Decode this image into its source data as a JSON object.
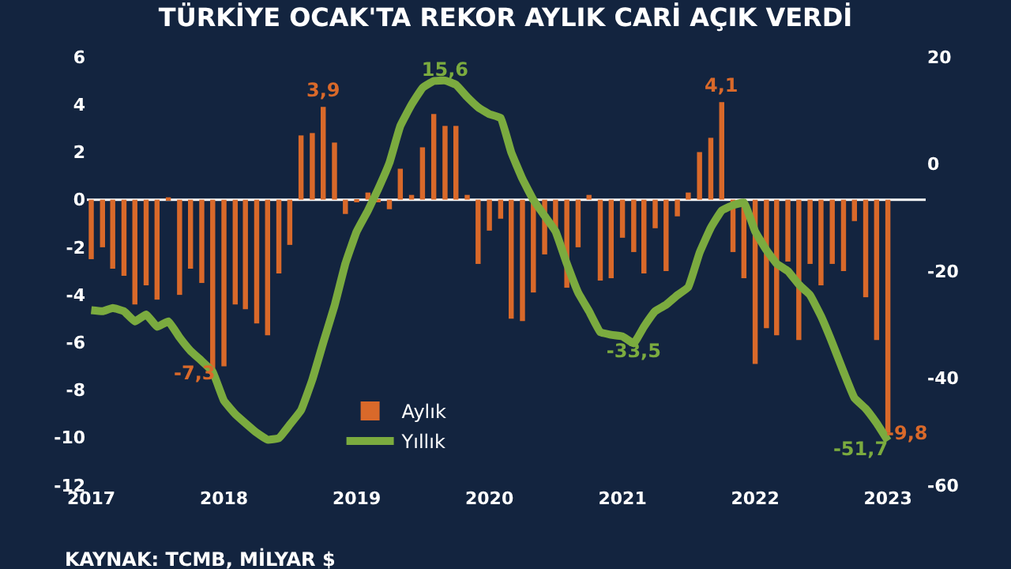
{
  "chart_data": {
    "type": "bar",
    "title": "TÜRKİYE OCAK'TA REKOR AYLIK CARİ AÇIK VERDİ",
    "x": [
      "2017-01",
      "2017-02",
      "2017-03",
      "2017-04",
      "2017-05",
      "2017-06",
      "2017-07",
      "2017-08",
      "2017-09",
      "2017-10",
      "2017-11",
      "2017-12",
      "2018-01",
      "2018-02",
      "2018-03",
      "2018-04",
      "2018-05",
      "2018-06",
      "2018-07",
      "2018-08",
      "2018-09",
      "2018-10",
      "2018-11",
      "2018-12",
      "2019-01",
      "2019-02",
      "2019-03",
      "2019-04",
      "2019-05",
      "2019-06",
      "2019-07",
      "2019-08",
      "2019-09",
      "2019-10",
      "2019-11",
      "2019-12",
      "2020-01",
      "2020-02",
      "2020-03",
      "2020-04",
      "2020-05",
      "2020-06",
      "2020-07",
      "2020-08",
      "2020-09",
      "2020-10",
      "2020-11",
      "2020-12",
      "2021-01",
      "2021-02",
      "2021-03",
      "2021-04",
      "2021-05",
      "2021-06",
      "2021-07",
      "2021-08",
      "2021-09",
      "2021-10",
      "2021-11",
      "2021-12",
      "2022-01",
      "2022-02",
      "2022-03",
      "2022-04",
      "2022-05",
      "2022-06",
      "2022-07",
      "2022-08",
      "2022-09",
      "2022-10",
      "2022-11",
      "2022-12",
      "2023-01"
    ],
    "series": [
      {
        "name": "Aylık",
        "color": "#d9692a",
        "values": [
          -2.5,
          -2.0,
          -2.9,
          -3.2,
          -4.4,
          -3.6,
          -4.2,
          0.1,
          -4.0,
          -2.9,
          -3.5,
          -7.3,
          -7.0,
          -4.4,
          -4.6,
          -5.2,
          -5.7,
          -3.1,
          -1.9,
          2.7,
          2.8,
          3.9,
          2.4,
          -0.6,
          -0.1,
          0.3,
          -0.1,
          -0.4,
          1.3,
          0.2,
          2.2,
          3.6,
          3.1,
          3.1,
          0.2,
          -2.7,
          -1.3,
          -0.8,
          -5.0,
          -5.1,
          -3.9,
          -2.3,
          -1.4,
          -3.7,
          -2.0,
          0.2,
          -3.4,
          -3.3,
          -1.6,
          -2.2,
          -3.1,
          -1.2,
          -3.0,
          -0.7,
          0.3,
          2.0,
          2.6,
          4.1,
          -2.2,
          -3.3,
          -6.9,
          -5.4,
          -5.7,
          -2.6,
          -5.9,
          -2.7,
          -3.6,
          -2.7,
          -3.0,
          -0.9,
          -4.1,
          -5.9,
          -9.8
        ],
        "value_labels": [
          null,
          null,
          null,
          null,
          null,
          null,
          null,
          null,
          null,
          null,
          null,
          "-7,3",
          null,
          null,
          null,
          null,
          null,
          null,
          null,
          null,
          null,
          "3,9",
          null,
          null,
          null,
          null,
          null,
          null,
          null,
          null,
          null,
          null,
          null,
          null,
          null,
          null,
          null,
          null,
          null,
          null,
          null,
          null,
          null,
          null,
          null,
          null,
          null,
          null,
          null,
          null,
          null,
          null,
          null,
          null,
          null,
          null,
          null,
          "4,1",
          null,
          null,
          null,
          null,
          null,
          null,
          null,
          null,
          null,
          null,
          null,
          null,
          null,
          null,
          "-9,8"
        ]
      },
      {
        "name": "Yıllık",
        "type": "line",
        "axis": "y2",
        "color": "#7bab3f",
        "values": [
          -27.3,
          -27.5,
          -26.9,
          -27.5,
          -29.4,
          -28.1,
          -30.4,
          -29.4,
          -32.4,
          -34.9,
          -36.8,
          -38.8,
          -44.2,
          -46.7,
          -48.4,
          -50.2,
          -51.5,
          -51.2,
          -48.7,
          -46.0,
          -40.3,
          -33.4,
          -26.5,
          -18.6,
          -12.6,
          -8.7,
          -4.7,
          0.2,
          7.1,
          11.1,
          14.2,
          15.5,
          15.6,
          14.8,
          12.5,
          10.6,
          9.3,
          8.6,
          2.2,
          -2.8,
          -6.7,
          -9.7,
          -12.6,
          -18.6,
          -24.0,
          -27.5,
          -31.4,
          -31.9,
          -32.2,
          -33.5,
          -30.4,
          -27.5,
          -26.3,
          -24.5,
          -23.0,
          -16.6,
          -11.9,
          -8.7,
          -7.7,
          -7.2,
          -12.6,
          -16.1,
          -18.6,
          -20.0,
          -22.5,
          -24.5,
          -28.4,
          -33.4,
          -38.8,
          -43.7,
          -45.7,
          -48.4,
          -51.7
        ],
        "value_labels": [
          null,
          null,
          null,
          null,
          null,
          null,
          null,
          null,
          null,
          null,
          null,
          null,
          null,
          null,
          null,
          null,
          null,
          null,
          null,
          null,
          null,
          null,
          null,
          null,
          null,
          null,
          null,
          null,
          null,
          null,
          null,
          null,
          "15,6",
          null,
          null,
          null,
          null,
          null,
          null,
          null,
          null,
          null,
          null,
          null,
          null,
          null,
          null,
          null,
          null,
          "-33,5",
          null,
          null,
          null,
          null,
          null,
          null,
          null,
          null,
          null,
          null,
          null,
          null,
          null,
          null,
          null,
          null,
          null,
          null,
          null,
          null,
          null,
          null,
          "-51,7"
        ]
      }
    ],
    "xlim": [
      "2016-12-20",
      "2023-04-15"
    ],
    "xticks": [
      "2017",
      "2018",
      "2019",
      "2020",
      "2021",
      "2022",
      "2023"
    ],
    "ylim": [
      -12,
      6
    ],
    "yticks": [
      -12,
      -10,
      -8,
      -6,
      -4,
      -2,
      0,
      2,
      4,
      6
    ],
    "y2lim": [
      -60,
      20
    ],
    "y2ticks": [
      -60,
      -40,
      -20,
      0,
      20
    ],
    "ref_lines": [
      {
        "axis": "y",
        "value": 0,
        "color": "#ffffff"
      }
    ],
    "legend": "bottom left",
    "grid": false,
    "marker": "none",
    "line_style": "solid",
    "annotations": [
      "KAYNAK: TCMB, MİLYAR $"
    ]
  }
}
